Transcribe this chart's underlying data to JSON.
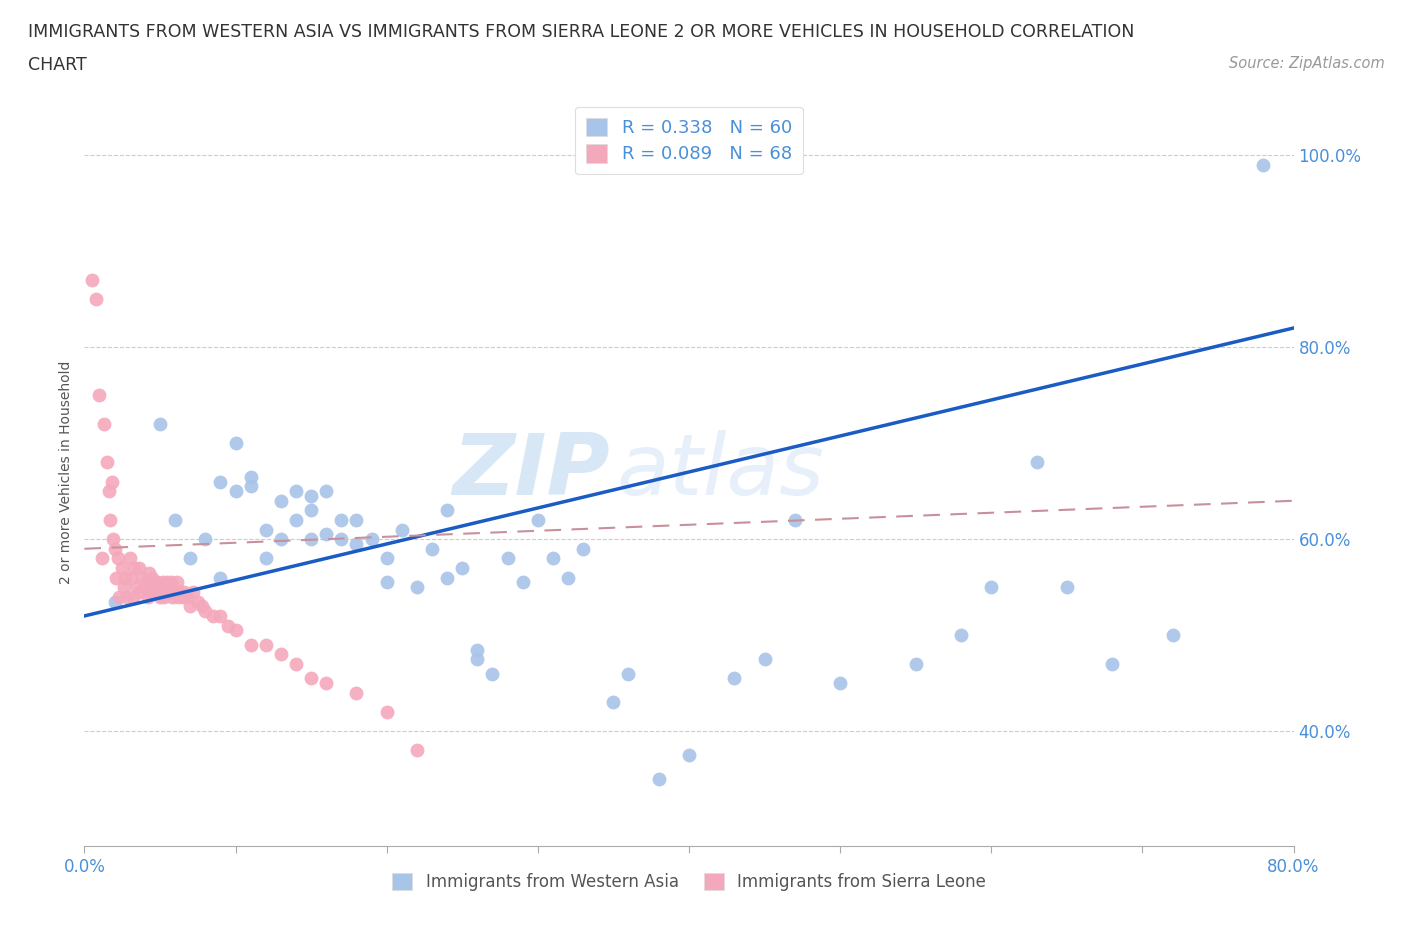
{
  "title_line1": "IMMIGRANTS FROM WESTERN ASIA VS IMMIGRANTS FROM SIERRA LEONE 2 OR MORE VEHICLES IN HOUSEHOLD CORRELATION",
  "title_line2": "CHART",
  "source": "Source: ZipAtlas.com",
  "ylabel": "2 or more Vehicles in Household",
  "xlim": [
    0.0,
    0.8
  ],
  "ylim": [
    0.28,
    1.06
  ],
  "yticks": [
    0.4,
    0.6,
    0.8,
    1.0
  ],
  "ytick_labels": [
    "40.0%",
    "60.0%",
    "80.0%",
    "100.0%"
  ],
  "color_blue": "#a8c4e8",
  "color_pink": "#f4a8bc",
  "color_blue_line": "#1a5bc4",
  "color_pink_line": "#c8909a",
  "label1": "Immigrants from Western Asia",
  "label2": "Immigrants from Sierra Leone",
  "watermark_zip": "ZIP",
  "watermark_atlas": "atlas",
  "wa_x": [
    0.02,
    0.05,
    0.06,
    0.07,
    0.08,
    0.09,
    0.09,
    0.1,
    0.1,
    0.11,
    0.11,
    0.12,
    0.12,
    0.13,
    0.13,
    0.14,
    0.14,
    0.15,
    0.15,
    0.15,
    0.16,
    0.16,
    0.17,
    0.17,
    0.18,
    0.18,
    0.19,
    0.2,
    0.2,
    0.21,
    0.22,
    0.23,
    0.24,
    0.24,
    0.25,
    0.26,
    0.26,
    0.27,
    0.28,
    0.29,
    0.3,
    0.31,
    0.32,
    0.33,
    0.35,
    0.36,
    0.38,
    0.4,
    0.43,
    0.45,
    0.47,
    0.5,
    0.55,
    0.58,
    0.6,
    0.63,
    0.65,
    0.68,
    0.72,
    0.78
  ],
  "wa_y": [
    0.535,
    0.72,
    0.62,
    0.58,
    0.6,
    0.56,
    0.66,
    0.7,
    0.65,
    0.655,
    0.665,
    0.58,
    0.61,
    0.64,
    0.6,
    0.65,
    0.62,
    0.645,
    0.63,
    0.6,
    0.605,
    0.65,
    0.62,
    0.6,
    0.595,
    0.62,
    0.6,
    0.58,
    0.555,
    0.61,
    0.55,
    0.59,
    0.63,
    0.56,
    0.57,
    0.475,
    0.485,
    0.46,
    0.58,
    0.555,
    0.62,
    0.58,
    0.56,
    0.59,
    0.43,
    0.46,
    0.35,
    0.375,
    0.455,
    0.475,
    0.62,
    0.45,
    0.47,
    0.5,
    0.55,
    0.68,
    0.55,
    0.47,
    0.5,
    0.99
  ],
  "sl_x": [
    0.005,
    0.008,
    0.01,
    0.012,
    0.013,
    0.015,
    0.016,
    0.017,
    0.018,
    0.019,
    0.02,
    0.021,
    0.022,
    0.023,
    0.025,
    0.026,
    0.027,
    0.028,
    0.03,
    0.031,
    0.032,
    0.033,
    0.035,
    0.036,
    0.037,
    0.038,
    0.04,
    0.041,
    0.042,
    0.043,
    0.044,
    0.045,
    0.046,
    0.047,
    0.048,
    0.05,
    0.051,
    0.052,
    0.053,
    0.055,
    0.056,
    0.057,
    0.058,
    0.06,
    0.061,
    0.062,
    0.063,
    0.065,
    0.066,
    0.068,
    0.07,
    0.072,
    0.075,
    0.078,
    0.08,
    0.085,
    0.09,
    0.095,
    0.1,
    0.11,
    0.12,
    0.13,
    0.14,
    0.15,
    0.16,
    0.18,
    0.2,
    0.22
  ],
  "sl_y": [
    0.87,
    0.85,
    0.75,
    0.58,
    0.72,
    0.68,
    0.65,
    0.62,
    0.66,
    0.6,
    0.59,
    0.56,
    0.58,
    0.54,
    0.57,
    0.55,
    0.56,
    0.54,
    0.58,
    0.56,
    0.54,
    0.57,
    0.55,
    0.57,
    0.545,
    0.56,
    0.55,
    0.555,
    0.54,
    0.565,
    0.545,
    0.56,
    0.55,
    0.545,
    0.555,
    0.54,
    0.545,
    0.555,
    0.54,
    0.555,
    0.545,
    0.555,
    0.54,
    0.545,
    0.555,
    0.54,
    0.545,
    0.54,
    0.545,
    0.54,
    0.53,
    0.545,
    0.535,
    0.53,
    0.525,
    0.52,
    0.52,
    0.51,
    0.505,
    0.49,
    0.49,
    0.48,
    0.47,
    0.455,
    0.45,
    0.44,
    0.42,
    0.38
  ],
  "wa_line_x": [
    0.0,
    0.8
  ],
  "wa_line_y": [
    0.52,
    0.82
  ],
  "sl_line_x": [
    0.0,
    0.8
  ],
  "sl_line_y": [
    0.59,
    0.64
  ]
}
